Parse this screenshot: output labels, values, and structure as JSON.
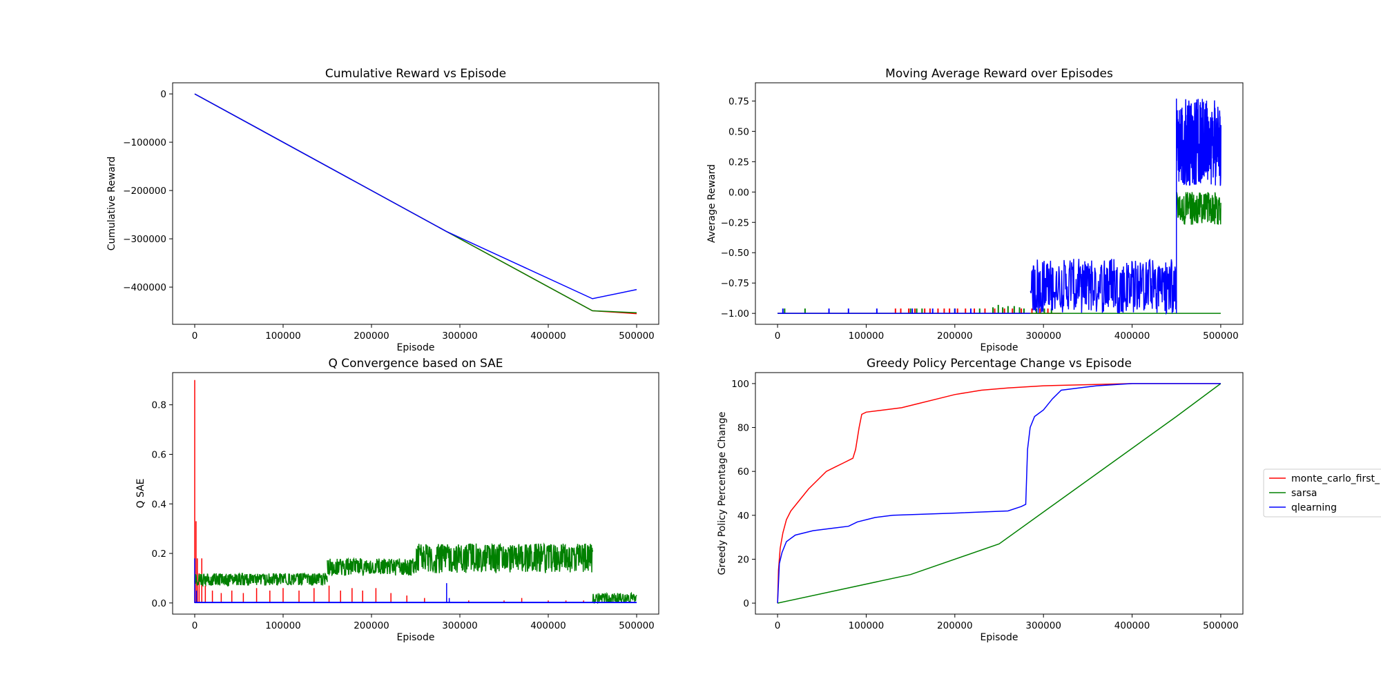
{
  "legend": {
    "entries": [
      {
        "label": "monte_carlo_first_",
        "color": "#ff0000"
      },
      {
        "label": "sarsa",
        "color": "#008000"
      },
      {
        "label": "qlearning",
        "color": "#0000ff"
      }
    ],
    "placement": "right"
  },
  "chart_data": [
    {
      "type": "line",
      "title": "Cumulative Reward vs Episode",
      "xlabel": "Episode",
      "ylabel": "Cumulative Reward",
      "xlim": [
        -25000,
        525000
      ],
      "ylim": [
        -477000,
        23000
      ],
      "xticks": [
        0,
        100000,
        200000,
        300000,
        400000,
        500000
      ],
      "yticks": [
        0,
        -100000,
        -200000,
        -300000,
        -400000
      ],
      "series": [
        {
          "name": "monte_carlo_first_",
          "color": "#ff0000",
          "points": [
            [
              0,
              0
            ],
            [
              285000,
              -285000
            ],
            [
              450000,
              -449000
            ],
            [
              500000,
              -455000
            ]
          ]
        },
        {
          "name": "sarsa",
          "color": "#008000",
          "points": [
            [
              0,
              0
            ],
            [
              285000,
              -285000
            ],
            [
              450000,
              -449000
            ],
            [
              500000,
              -453000
            ]
          ]
        },
        {
          "name": "qlearning",
          "color": "#0000ff",
          "points": [
            [
              0,
              0
            ],
            [
              285000,
              -285000
            ],
            [
              450000,
              -424000
            ],
            [
              500000,
              -405000
            ]
          ]
        }
      ]
    },
    {
      "type": "line",
      "title": "Moving Average Reward over Episodes",
      "xlabel": "Episode",
      "ylabel": "Average Reward",
      "xlim": [
        -25000,
        525000
      ],
      "ylim": [
        -1.09,
        0.9
      ],
      "xticks": [
        0,
        100000,
        200000,
        300000,
        400000,
        500000
      ],
      "yticks": [
        -1.0,
        -0.75,
        -0.5,
        -0.25,
        0.0,
        0.25,
        0.5,
        0.75
      ],
      "series": [
        {
          "name": "monte_carlo_first_",
          "color": "#ff0000",
          "baseline": -1.0,
          "spikes": [
            [
              133000,
              -0.96
            ],
            [
              139000,
              -0.96
            ],
            [
              148000,
              -0.96
            ],
            [
              155000,
              -0.96
            ],
            [
              166000,
              -0.96
            ],
            [
              172000,
              -0.96
            ],
            [
              181000,
              -0.96
            ],
            [
              188000,
              -0.96
            ],
            [
              194000,
              -0.96
            ],
            [
              203000,
              -0.96
            ],
            [
              212000,
              -0.96
            ],
            [
              222000,
              -0.96
            ],
            [
              234000,
              -0.96
            ],
            [
              245000,
              -0.96
            ],
            [
              256000,
              -0.96
            ],
            [
              265000,
              -0.96
            ],
            [
              275000,
              -0.96
            ],
            [
              287000,
              -0.96
            ],
            [
              296000,
              -0.96
            ],
            [
              305000,
              -0.96
            ]
          ]
        },
        {
          "name": "sarsa",
          "color": "#008000",
          "baseline": -1.0,
          "spikes": [
            [
              8000,
              -0.96
            ],
            [
              31000,
              -0.96
            ],
            [
              150000,
              -0.96
            ],
            [
              157000,
              -0.96
            ],
            [
              163000,
              -0.96
            ],
            [
              200000,
              -0.96
            ],
            [
              228000,
              -0.96
            ],
            [
              243000,
              -0.95
            ],
            [
              249000,
              -0.93
            ],
            [
              254000,
              -0.95
            ],
            [
              260000,
              -0.94
            ],
            [
              267000,
              -0.94
            ],
            [
              273000,
              -0.95
            ],
            [
              278000,
              -0.96
            ],
            [
              292000,
              -0.96
            ],
            [
              301000,
              -0.96
            ],
            [
              309000,
              -0.96
            ]
          ],
          "band": {
            "x": [
              450000,
              500000
            ],
            "low": -0.27,
            "high": 0.0
          }
        },
        {
          "name": "qlearning",
          "color": "#0000ff",
          "baseline": -1.0,
          "spikes": [
            [
              6000,
              -0.96
            ],
            [
              58000,
              -0.96
            ],
            [
              80000,
              -0.96
            ],
            [
              112000,
              -0.96
            ],
            [
              152000,
              -0.96
            ],
            [
              175000,
              -0.96
            ],
            [
              200000,
              -0.96
            ],
            [
              218000,
              -0.96
            ]
          ],
          "band1": {
            "x": [
              285000,
              450000
            ],
            "low": -1.0,
            "high": -0.55
          },
          "band2": {
            "x": [
              450000,
              500000
            ],
            "low": 0.05,
            "high": 0.77
          }
        }
      ]
    },
    {
      "type": "line",
      "title": "Q Convergence based on SAE",
      "xlabel": "Episode",
      "ylabel": "Q SAE",
      "xlim": [
        -25000,
        525000
      ],
      "ylim": [
        -0.045,
        0.93
      ],
      "xticks": [
        0,
        100000,
        200000,
        300000,
        400000,
        500000
      ],
      "yticks": [
        0.0,
        0.2,
        0.4,
        0.6,
        0.8
      ],
      "series": [
        {
          "name": "monte_carlo_first_",
          "color": "#ff0000",
          "peaks": [
            [
              0,
              0.9
            ],
            [
              1500,
              0.33
            ],
            [
              3000,
              0.18
            ],
            [
              5000,
              0.12
            ],
            [
              8000,
              0.18
            ],
            [
              12000,
              0.07
            ],
            [
              20000,
              0.05
            ],
            [
              30000,
              0.04
            ],
            [
              42000,
              0.05
            ],
            [
              55000,
              0.04
            ],
            [
              70000,
              0.06
            ],
            [
              85000,
              0.05
            ],
            [
              100000,
              0.06
            ],
            [
              118000,
              0.05
            ],
            [
              135000,
              0.06
            ],
            [
              152000,
              0.07
            ],
            [
              165000,
              0.05
            ],
            [
              178000,
              0.06
            ],
            [
              190000,
              0.05
            ],
            [
              205000,
              0.06
            ],
            [
              222000,
              0.04
            ],
            [
              240000,
              0.03
            ],
            [
              260000,
              0.02
            ],
            [
              285000,
              0.02
            ],
            [
              310000,
              0.01
            ],
            [
              350000,
              0.01
            ],
            [
              370000,
              0.02
            ],
            [
              400000,
              0.01
            ],
            [
              420000,
              0.01
            ],
            [
              440000,
              0.01
            ]
          ]
        },
        {
          "name": "sarsa",
          "color": "#008000",
          "bands": [
            {
              "x": [
                0,
                150000
              ],
              "low": 0.07,
              "high": 0.12
            },
            {
              "x": [
                150000,
                250000
              ],
              "low": 0.11,
              "high": 0.18
            },
            {
              "x": [
                250000,
                450000
              ],
              "low": 0.12,
              "high": 0.24
            },
            {
              "x": [
                450000,
                500000
              ],
              "low": 0.0,
              "high": 0.04
            }
          ]
        },
        {
          "name": "qlearning",
          "color": "#0000ff",
          "peaks": [
            [
              0,
              0.18
            ],
            [
              2000,
              0.05
            ],
            [
              285000,
              0.08
            ],
            [
              288000,
              0.02
            ]
          ],
          "baseline": 0.0
        }
      ]
    },
    {
      "type": "line",
      "title": "Greedy Policy Percentage Change vs Episode",
      "xlabel": "Episode",
      "ylabel": "Greedy Policy Percentage Change",
      "xlim": [
        -25000,
        525000
      ],
      "ylim": [
        -5,
        105
      ],
      "xticks": [
        0,
        100000,
        200000,
        300000,
        400000,
        500000
      ],
      "yticks": [
        0,
        20,
        40,
        60,
        80,
        100
      ],
      "series": [
        {
          "name": "monte_carlo_first_",
          "color": "#ff0000",
          "points": [
            [
              0,
              0
            ],
            [
              1000,
              15
            ],
            [
              3000,
              25
            ],
            [
              6000,
              32
            ],
            [
              10000,
              38
            ],
            [
              15000,
              42
            ],
            [
              25000,
              47
            ],
            [
              35000,
              52
            ],
            [
              45000,
              56
            ],
            [
              55000,
              60
            ],
            [
              65000,
              62
            ],
            [
              75000,
              64
            ],
            [
              85000,
              66
            ],
            [
              88000,
              70
            ],
            [
              92000,
              80
            ],
            [
              95000,
              86
            ],
            [
              100000,
              87
            ],
            [
              120000,
              88
            ],
            [
              140000,
              89
            ],
            [
              160000,
              91
            ],
            [
              180000,
              93
            ],
            [
              200000,
              95
            ],
            [
              230000,
              97
            ],
            [
              260000,
              98
            ],
            [
              300000,
              99
            ],
            [
              350000,
              99.5
            ],
            [
              400000,
              100
            ],
            [
              500000,
              100
            ]
          ]
        },
        {
          "name": "sarsa",
          "color": "#008000",
          "points": [
            [
              0,
              0
            ],
            [
              150000,
              13
            ],
            [
              250000,
              27
            ],
            [
              450000,
              85
            ],
            [
              500000,
              100
            ]
          ]
        },
        {
          "name": "qlearning",
          "color": "#0000ff",
          "points": [
            [
              0,
              0
            ],
            [
              2000,
              18
            ],
            [
              5000,
              23
            ],
            [
              10000,
              28
            ],
            [
              20000,
              31
            ],
            [
              40000,
              33
            ],
            [
              60000,
              34
            ],
            [
              80000,
              35
            ],
            [
              90000,
              37
            ],
            [
              110000,
              39
            ],
            [
              130000,
              40
            ],
            [
              200000,
              41
            ],
            [
              260000,
              42
            ],
            [
              275000,
              44
            ],
            [
              280000,
              45
            ],
            [
              282000,
              70
            ],
            [
              285000,
              80
            ],
            [
              290000,
              85
            ],
            [
              300000,
              88
            ],
            [
              310000,
              93
            ],
            [
              320000,
              97
            ],
            [
              340000,
              98
            ],
            [
              360000,
              99
            ],
            [
              400000,
              100
            ],
            [
              500000,
              100
            ]
          ]
        }
      ]
    }
  ]
}
